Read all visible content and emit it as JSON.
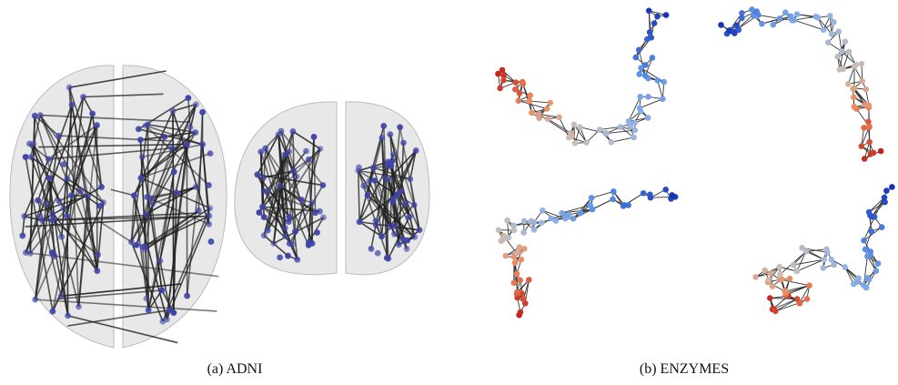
{
  "captions": {
    "a": "(a) ADNI",
    "b": "(b) ENZYMES"
  }
}
